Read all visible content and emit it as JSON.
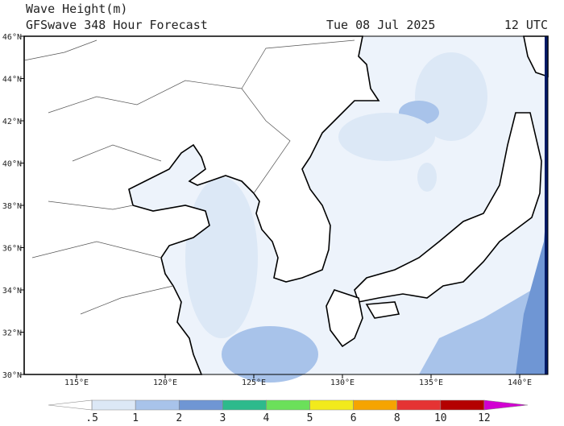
{
  "header": {
    "title": "Wave Height(m)",
    "subtitle": "GFSwave 348 Hour Forecast",
    "date": "Tue 08 Jul 2025",
    "time": "12 UTC"
  },
  "map": {
    "lon_labels": [
      "115°E",
      "120°E",
      "125°E",
      "130°E",
      "135°E",
      "140°E"
    ],
    "lat_labels": [
      "46°N",
      "44°N",
      "42°N",
      "40°N",
      "38°N",
      "36°N",
      "34°N",
      "32°N",
      "30°N"
    ]
  },
  "colorbar": {
    "labels": [
      ".5",
      "1",
      "2",
      "3",
      "4",
      "5",
      "6",
      "8",
      "10",
      "12"
    ],
    "colors": [
      "#ffffff",
      "#dce8f6",
      "#a8c3ea",
      "#6f96d4",
      "#2dba8c",
      "#6be05a",
      "#f2ea1c",
      "#f6a400",
      "#e53333",
      "#b40000",
      "#d200d2"
    ]
  }
}
